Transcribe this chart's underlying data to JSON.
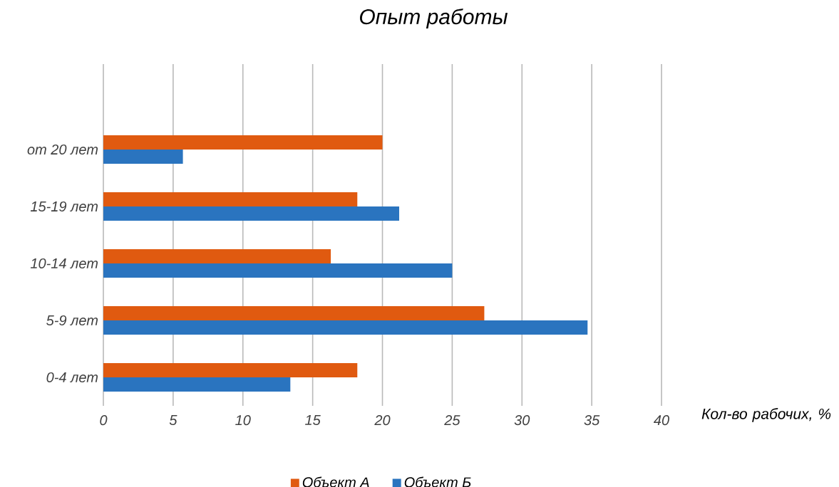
{
  "chart_data": {
    "type": "bar",
    "orientation": "horizontal",
    "title": "Опыт работы",
    "xlabel": "Кол-во рабочих, %",
    "categories": [
      "от 20 лет",
      "15-19 лет",
      "10-14 лет",
      "5-9 лет",
      "0-4 лет"
    ],
    "series": [
      {
        "name": "Объект А",
        "color": "#e05a10",
        "values": [
          20,
          18.2,
          16.3,
          27.3,
          18.2
        ]
      },
      {
        "name": "Объект Б",
        "color": "#2a74bf",
        "values": [
          5.7,
          21.2,
          25.0,
          34.7,
          13.4
        ]
      }
    ],
    "xlim": [
      0,
      40
    ],
    "xticks": [
      0,
      5,
      10,
      15,
      20,
      25,
      30,
      35,
      40
    ],
    "grid": "x",
    "legend": "bottom"
  }
}
